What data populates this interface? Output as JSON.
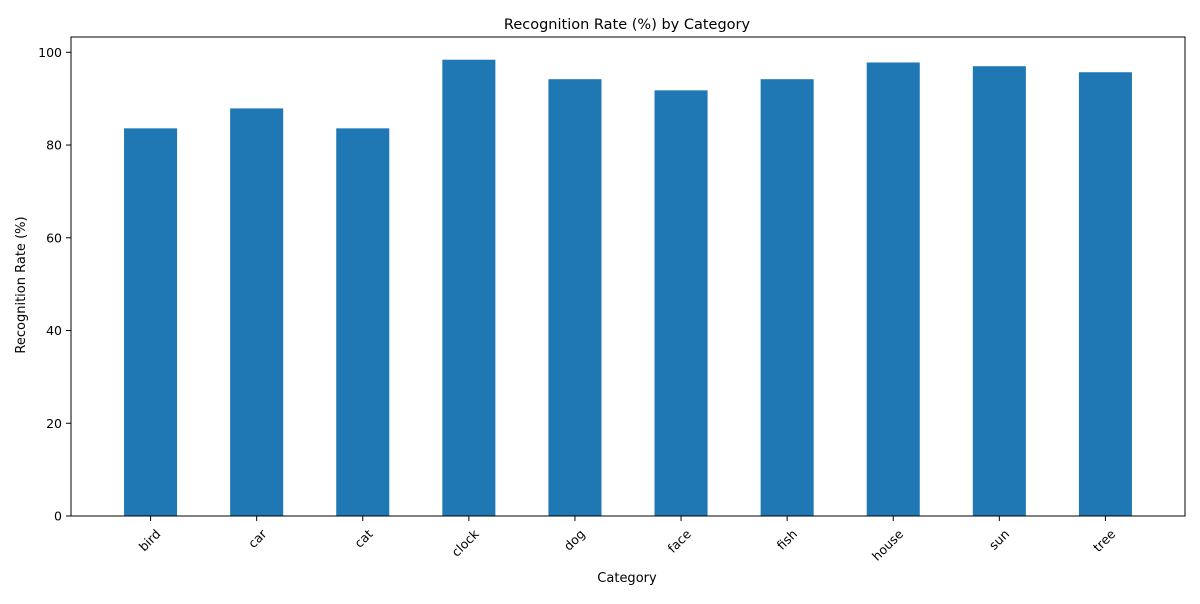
{
  "chart_data": {
    "type": "bar",
    "title": "Recognition Rate (%) by Category",
    "xlabel": "Category",
    "ylabel": "Recognition Rate (%)",
    "categories": [
      "bird",
      "car",
      "cat",
      "clock",
      "dog",
      "face",
      "fish",
      "house",
      "sun",
      "tree"
    ],
    "values": [
      83.6,
      87.9,
      83.6,
      98.4,
      94.2,
      91.8,
      94.2,
      97.8,
      97.0,
      95.7
    ],
    "ylim": [
      0,
      103.3
    ],
    "yticks": [
      0,
      20,
      40,
      60,
      80,
      100
    ],
    "grid": false,
    "legend": "none",
    "xtick_rotation": 45,
    "bar_color": "#1f77b4"
  }
}
